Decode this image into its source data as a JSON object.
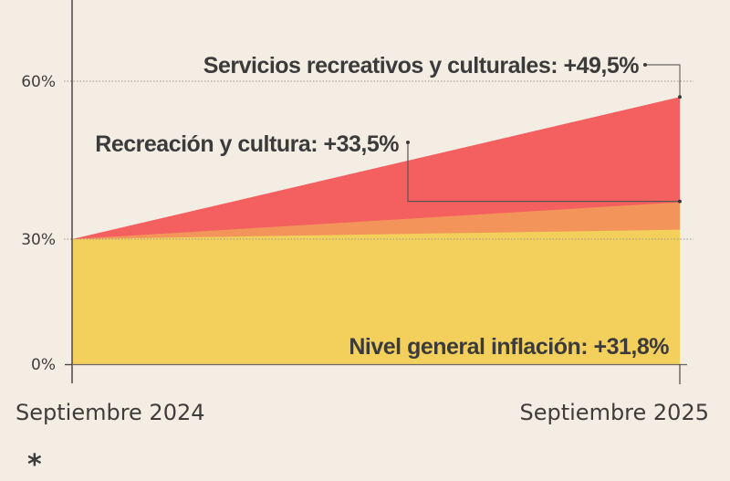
{
  "chart_data": {
    "type": "area",
    "title": "",
    "xlabel": "",
    "ylabel": "",
    "x": [
      "Septiembre 2024",
      "Septiembre 2025"
    ],
    "ylim": [
      0,
      60
    ],
    "y_ticks": [
      0,
      30,
      60
    ],
    "y_tick_labels": [
      "0%",
      "30%",
      "60%"
    ],
    "grid": "dotted horizontal at 30% and 60%",
    "baseline_start": 30,
    "series": [
      {
        "name": "Servicios recreativos y culturales",
        "label": "Servicios recreativos y culturales: +49,5%",
        "change_pct": 49.5,
        "values": [
          30,
          57
        ],
        "color": "#f45f5f"
      },
      {
        "name": "Recreación y cultura",
        "label": "Recreación y cultura: +33,5%",
        "change_pct": 33.5,
        "values": [
          30,
          37
        ],
        "color": "#f3955a"
      },
      {
        "name": "Nivel general inflación",
        "label": "Nivel general inflación: +31,8%",
        "change_pct": 31.8,
        "values": [
          30,
          31.8
        ],
        "color": "#f3d05c"
      }
    ]
  },
  "footnote": "*"
}
